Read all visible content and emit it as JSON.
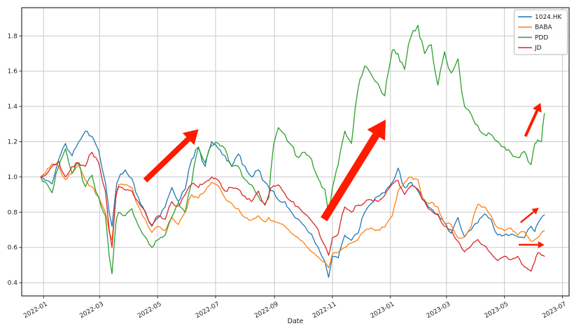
{
  "chart_data": {
    "type": "line",
    "title": "",
    "xlabel": "Date",
    "ylabel": "",
    "grid": true,
    "legend_position": "upper right",
    "legend_entries": [
      "1024.HK",
      "BABA",
      "PDD",
      "JD"
    ],
    "colors": {
      "series_1024hk": "#1f77b4",
      "series_baba": "#ff7f0e",
      "series_pdd": "#2ca02c",
      "series_jd": "#d62728",
      "annotation_arrow": "#fe1b00",
      "grid": "#c9c9c9",
      "spine": "#3c3c3c",
      "background": "#ffffff",
      "legend_border": "#b8b8b8"
    },
    "x_tick_labels": [
      "2022-01",
      "2022-03",
      "2022-05",
      "2022-07",
      "2022-09",
      "2022-11",
      "2023-01",
      "2023-03",
      "2023-05",
      "2023-07"
    ],
    "y_tick_labels": [
      "0.4",
      "0.6",
      "0.8",
      "1.0",
      "1.2",
      "1.4",
      "1.6",
      "1.8"
    ],
    "y_ticks": [
      0.4,
      0.6,
      0.8,
      1.0,
      1.2,
      1.4,
      1.6,
      1.8
    ],
    "xlim": [
      "2021-12-09",
      "2023-07-08"
    ],
    "ylim": [
      0.325,
      1.96
    ],
    "dates": [
      "2021-12-29",
      "2022-01-03",
      "2022-01-10",
      "2022-01-17",
      "2022-01-24",
      "2022-01-31",
      "2022-02-07",
      "2022-02-14",
      "2022-02-21",
      "2022-02-28",
      "2022-03-07",
      "2022-03-14",
      "2022-03-18",
      "2022-03-21",
      "2022-03-28",
      "2022-04-04",
      "2022-04-11",
      "2022-04-18",
      "2022-04-25",
      "2022-05-02",
      "2022-05-09",
      "2022-05-16",
      "2022-05-23",
      "2022-05-30",
      "2022-06-06",
      "2022-06-13",
      "2022-06-20",
      "2022-06-27",
      "2022-07-04",
      "2022-07-11",
      "2022-07-18",
      "2022-07-25",
      "2022-08-01",
      "2022-08-08",
      "2022-08-15",
      "2022-08-22",
      "2022-08-26",
      "2022-08-31",
      "2022-09-05",
      "2022-09-12",
      "2022-09-19",
      "2022-09-26",
      "2022-10-03",
      "2022-10-10",
      "2022-10-17",
      "2022-10-24",
      "2022-10-28",
      "2022-11-01",
      "2022-11-07",
      "2022-11-14",
      "2022-11-21",
      "2022-11-28",
      "2022-12-05",
      "2022-12-12",
      "2022-12-19",
      "2022-12-26",
      "2023-01-03",
      "2023-01-09",
      "2023-01-16",
      "2023-01-23",
      "2023-01-30",
      "2023-02-06",
      "2023-02-13",
      "2023-02-20",
      "2023-02-27",
      "2023-03-06",
      "2023-03-13",
      "2023-03-20",
      "2023-03-27",
      "2023-04-03",
      "2023-04-10",
      "2023-04-17",
      "2023-04-24",
      "2023-05-01",
      "2023-05-08",
      "2023-05-15",
      "2023-05-22",
      "2023-05-29",
      "2023-06-02",
      "2023-06-05",
      "2023-06-09",
      "2023-06-12"
    ],
    "series": [
      {
        "name": "1024.HK",
        "color": "#1f77b4",
        "values": [
          1.0,
          0.98,
          0.96,
          1.1,
          1.19,
          1.12,
          1.2,
          1.26,
          1.23,
          1.15,
          0.97,
          0.72,
          0.92,
          0.99,
          1.04,
          0.99,
          0.88,
          0.8,
          0.72,
          0.77,
          0.83,
          0.94,
          0.86,
          0.93,
          1.1,
          1.17,
          1.06,
          1.2,
          1.16,
          1.12,
          1.06,
          1.13,
          1.06,
          1.0,
          1.04,
          0.97,
          0.94,
          0.92,
          0.87,
          0.86,
          0.8,
          0.76,
          0.72,
          0.675,
          0.6,
          0.52,
          0.43,
          0.55,
          0.54,
          0.67,
          0.64,
          0.68,
          0.8,
          0.85,
          0.89,
          0.91,
          0.97,
          1.05,
          0.94,
          0.97,
          0.92,
          0.87,
          0.82,
          0.79,
          0.74,
          0.68,
          0.77,
          0.66,
          0.7,
          0.74,
          0.79,
          0.76,
          0.67,
          0.67,
          0.675,
          0.66,
          0.655,
          0.72,
          0.69,
          0.735,
          0.77,
          0.785
        ]
      },
      {
        "name": "BABA",
        "color": "#ff7f0e",
        "values": [
          1.0,
          1.02,
          1.075,
          1.06,
          0.985,
          1.02,
          1.07,
          0.98,
          0.945,
          0.885,
          0.8,
          0.64,
          0.88,
          0.955,
          0.955,
          0.94,
          0.83,
          0.76,
          0.685,
          0.72,
          0.695,
          0.77,
          0.73,
          0.8,
          0.9,
          0.88,
          0.92,
          0.97,
          0.95,
          0.88,
          0.85,
          0.82,
          0.77,
          0.755,
          0.78,
          0.745,
          0.77,
          0.75,
          0.74,
          0.72,
          0.68,
          0.655,
          0.62,
          0.575,
          0.545,
          0.515,
          0.485,
          0.565,
          0.575,
          0.6,
          0.625,
          0.645,
          0.695,
          0.71,
          0.7,
          0.715,
          0.78,
          0.92,
          0.97,
          1.0,
          0.985,
          0.86,
          0.855,
          0.83,
          0.735,
          0.73,
          0.655,
          0.66,
          0.72,
          0.845,
          0.83,
          0.78,
          0.71,
          0.695,
          0.71,
          0.67,
          0.69,
          0.635,
          0.645,
          0.655,
          0.685,
          0.695
        ]
      },
      {
        "name": "PDD",
        "color": "#2ca02c",
        "values": [
          1.0,
          0.97,
          0.91,
          1.06,
          1.16,
          1.02,
          1.08,
          0.945,
          1.01,
          0.885,
          0.78,
          0.45,
          0.73,
          0.8,
          0.78,
          0.82,
          0.72,
          0.66,
          0.6,
          0.645,
          0.67,
          0.775,
          0.855,
          0.8,
          0.97,
          1.17,
          1.08,
          1.18,
          1.19,
          1.16,
          1.06,
          1.06,
          0.985,
          0.955,
          0.89,
          0.845,
          0.88,
          1.18,
          1.28,
          1.24,
          1.18,
          1.11,
          1.14,
          1.1,
          0.99,
          0.93,
          0.79,
          0.94,
          1.07,
          1.26,
          1.19,
          1.5,
          1.63,
          1.58,
          1.53,
          1.46,
          1.72,
          1.7,
          1.61,
          1.8,
          1.86,
          1.7,
          1.75,
          1.52,
          1.71,
          1.59,
          1.67,
          1.4,
          1.355,
          1.29,
          1.24,
          1.24,
          1.2,
          1.17,
          1.135,
          1.11,
          1.145,
          1.07,
          1.19,
          1.21,
          1.2,
          1.36
        ]
      },
      {
        "name": "JD",
        "color": "#d62728",
        "values": [
          1.0,
          1.01,
          1.06,
          1.09,
          1.0,
          1.06,
          1.08,
          1.06,
          1.14,
          1.08,
          0.92,
          0.6,
          0.88,
          0.945,
          0.925,
          0.92,
          0.855,
          0.805,
          0.725,
          0.78,
          0.76,
          0.86,
          0.835,
          0.9,
          0.96,
          0.94,
          0.97,
          1.0,
          0.98,
          0.92,
          0.94,
          0.93,
          0.89,
          0.86,
          0.92,
          0.84,
          0.9,
          0.95,
          0.955,
          0.905,
          0.86,
          0.83,
          0.79,
          0.75,
          0.7,
          0.61,
          0.555,
          0.655,
          0.675,
          0.83,
          0.8,
          0.84,
          0.855,
          0.87,
          0.86,
          0.895,
          0.96,
          0.98,
          0.9,
          0.95,
          0.93,
          0.86,
          0.81,
          0.785,
          0.72,
          0.7,
          0.635,
          0.575,
          0.61,
          0.645,
          0.61,
          0.565,
          0.525,
          0.55,
          0.53,
          0.55,
          0.49,
          0.465,
          0.52,
          0.57,
          0.555,
          0.55
        ]
      }
    ],
    "annotations": {
      "arrows": [
        {
          "label": "uptrend-spring-2022",
          "from_date": "2022-04-18",
          "from_value": 0.98,
          "to_date": "2022-06-13",
          "to_value": 1.27,
          "shaft_width": 8,
          "head_length": 20,
          "head_width": 24
        },
        {
          "label": "uptrend-winter-2022",
          "from_date": "2022-10-23",
          "from_value": 0.76,
          "to_date": "2022-12-27",
          "to_value": 1.325,
          "shaft_width": 11,
          "head_length": 26,
          "head_width": 30
        },
        {
          "label": "uptrend-pdd-jun-2023",
          "from_date": "2023-05-23",
          "from_value": 1.23,
          "to_date": "2023-06-08",
          "to_value": 1.42,
          "shaft_width": 4,
          "head_length": 12,
          "head_width": 14
        },
        {
          "label": "uptrend-baba-jun-2023",
          "from_date": "2023-05-18",
          "from_value": 0.742,
          "to_date": "2023-06-06",
          "to_value": 0.825,
          "shaft_width": 2.5,
          "head_length": 9,
          "head_width": 10
        },
        {
          "label": "sideways-jd-jun-2023",
          "from_date": "2023-05-16",
          "from_value": 0.615,
          "to_date": "2023-06-12",
          "to_value": 0.615,
          "shaft_width": 2.5,
          "head_length": 9,
          "head_width": 10
        }
      ]
    }
  }
}
